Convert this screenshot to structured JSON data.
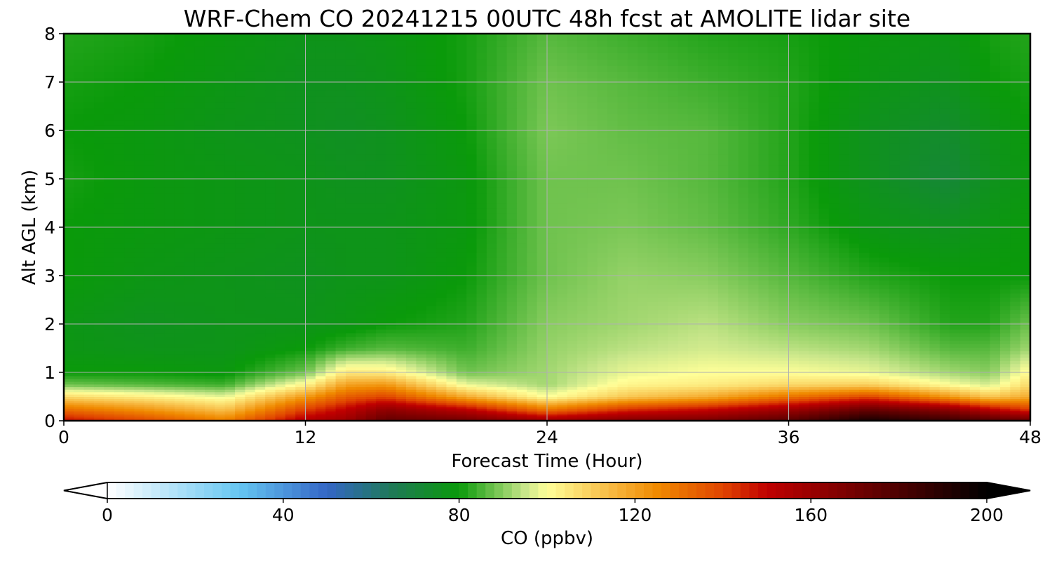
{
  "chart_data": {
    "type": "heatmap",
    "title": "WRF-Chem CO  20241215 00UTC 48h fcst at AMOLITE lidar site",
    "xlabel": "Forecast Time (Hour)",
    "ylabel": "Alt AGL (km)",
    "xlim": [
      0,
      48
    ],
    "ylim": [
      0,
      8
    ],
    "x_ticks": [
      0,
      12,
      24,
      36,
      48
    ],
    "y_ticks": [
      0,
      1,
      2,
      3,
      4,
      5,
      6,
      7,
      8
    ],
    "grid": true,
    "colorbar": {
      "label": "CO  (ppbv)",
      "range": [
        0,
        200
      ],
      "ticks": [
        0,
        40,
        80,
        120,
        160,
        200
      ],
      "extend": "both",
      "color_stops": [
        {
          "v": 0,
          "c": "#ffffff"
        },
        {
          "v": 30,
          "c": "#66c6f2"
        },
        {
          "v": 50,
          "c": "#3366c6"
        },
        {
          "v": 65,
          "c": "#1e7a55"
        },
        {
          "v": 80,
          "c": "#0a9a0a"
        },
        {
          "v": 95,
          "c": "#c8e68a"
        },
        {
          "v": 100,
          "c": "#ffff99"
        },
        {
          "v": 115,
          "c": "#f7b73f"
        },
        {
          "v": 125,
          "c": "#f08a00"
        },
        {
          "v": 140,
          "c": "#e04400"
        },
        {
          "v": 150,
          "c": "#c00000"
        },
        {
          "v": 175,
          "c": "#600000"
        },
        {
          "v": 200,
          "c": "#000000"
        }
      ]
    },
    "x": [
      0,
      4,
      8,
      12,
      14,
      16,
      20,
      24,
      28,
      32,
      36,
      40,
      44,
      46,
      48
    ],
    "y": [
      0,
      0.25,
      0.5,
      0.75,
      1,
      1.5,
      2,
      3,
      4,
      5,
      6,
      7,
      8
    ],
    "z": [
      [
        150,
        140,
        128,
        155,
        160,
        175,
        172,
        162,
        168,
        170,
        178,
        195,
        186,
        180,
        175
      ],
      [
        130,
        122,
        112,
        140,
        150,
        162,
        150,
        128,
        142,
        148,
        158,
        172,
        162,
        150,
        140
      ],
      [
        108,
        104,
        98,
        122,
        135,
        140,
        118,
        100,
        112,
        118,
        130,
        140,
        122,
        112,
        118
      ],
      [
        88,
        86,
        84,
        102,
        120,
        122,
        98,
        92,
        102,
        104,
        108,
        110,
        100,
        96,
        108
      ],
      [
        80,
        80,
        79,
        88,
        105,
        104,
        88,
        92,
        98,
        100,
        100,
        98,
        92,
        90,
        102
      ],
      [
        78,
        77,
        77,
        80,
        84,
        86,
        84,
        91,
        94,
        96,
        94,
        92,
        86,
        86,
        92
      ],
      [
        78,
        76,
        77,
        77,
        78,
        80,
        82,
        90,
        92,
        94,
        90,
        88,
        82,
        82,
        88
      ],
      [
        80,
        78,
        77,
        76,
        77,
        77,
        80,
        88,
        91,
        90,
        86,
        82,
        80,
        80,
        80
      ],
      [
        80,
        79,
        78,
        77,
        77,
        77,
        79,
        88,
        89,
        87,
        83,
        78,
        76,
        78,
        80
      ],
      [
        81,
        79,
        78,
        77,
        76,
        76,
        79,
        88,
        88,
        86,
        82,
        76,
        71,
        76,
        79
      ],
      [
        80,
        79,
        77,
        76,
        75,
        76,
        80,
        89,
        87,
        86,
        82,
        76,
        73,
        77,
        80
      ],
      [
        81,
        80,
        78,
        76,
        76,
        77,
        81,
        88,
        86,
        84,
        82,
        78,
        76,
        80,
        81
      ],
      [
        82,
        81,
        79,
        77,
        77,
        78,
        81,
        86,
        84,
        82,
        81,
        79,
        78,
        81,
        82
      ]
    ]
  }
}
